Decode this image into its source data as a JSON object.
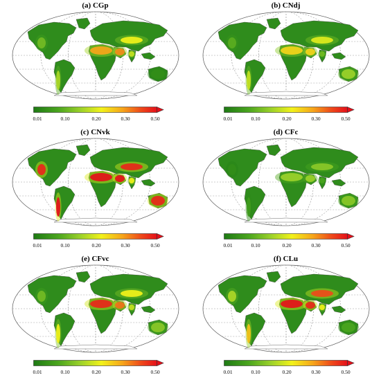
{
  "panels": [
    {
      "id": "a",
      "title": "(a)  CGp"
    },
    {
      "id": "b",
      "title": "(b) CNdj"
    },
    {
      "id": "c",
      "title": "(c) CNvk"
    },
    {
      "id": "d",
      "title": "(d)  CFc"
    },
    {
      "id": "e",
      "title": "(e)  CFvc"
    },
    {
      "id": "f",
      "title": "(f)  CLu"
    }
  ],
  "colorbar": {
    "ticks": [
      "0.01",
      "0.10",
      "0.20",
      "0.30",
      "0.50"
    ],
    "tick_values": [
      0.01,
      0.1,
      0.2,
      0.3,
      0.5
    ],
    "range": [
      0.01,
      0.5
    ],
    "colors": [
      "#1e7a14",
      "#4aa51e",
      "#9bd12a",
      "#f2f21a",
      "#f6a51a",
      "#ee4a1a",
      "#e5101a"
    ]
  },
  "panel_hotspots": {
    "a": {
      "sahara": 0.38,
      "arabia": 0.4,
      "central_asia": 0.3,
      "australia": 0.05,
      "andes": 0.22,
      "na_west": 0.15,
      "india": 0.25
    },
    "b": {
      "sahara": 0.33,
      "arabia": 0.33,
      "central_asia": 0.28,
      "australia": 0.2,
      "andes": 0.25,
      "na_west": 0.12,
      "india": 0.15
    },
    "c": {
      "sahara": 0.5,
      "arabia": 0.5,
      "central_asia": 0.48,
      "australia": 0.48,
      "andes": 0.5,
      "na_west": 0.48,
      "india": 0.3
    },
    "d": {
      "sahara": 0.2,
      "arabia": 0.2,
      "central_asia": 0.18,
      "australia": 0.18,
      "andes": 0.08,
      "na_west": 0.05,
      "india": 0.1
    },
    "e": {
      "sahara": 0.48,
      "arabia": 0.42,
      "central_asia": 0.3,
      "australia": 0.18,
      "andes": 0.3,
      "na_west": 0.15,
      "india": 0.25
    },
    "f": {
      "sahara": 0.5,
      "arabia": 0.48,
      "central_asia": 0.45,
      "australia": 0.1,
      "andes": 0.35,
      "na_west": 0.22,
      "india": 0.3
    }
  }
}
